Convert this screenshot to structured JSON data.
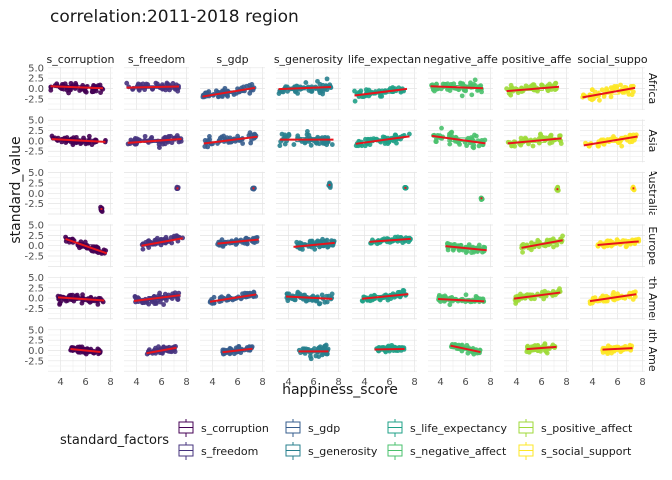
{
  "chart_data": {
    "type": "scatter",
    "title": "correlation:2011-2018 region",
    "xlabel": "happiness_score",
    "ylabel": "standard_value",
    "xlim": [
      3,
      8.2
    ],
    "ylim": [
      -5.2,
      5.2
    ],
    "xticks": [
      4,
      6,
      8
    ],
    "yticks": [
      5.0,
      2.5,
      0.0,
      -2.5
    ],
    "ytick_labels": [
      "5.0",
      "2.5",
      "0.0",
      "-2.5"
    ],
    "columns": [
      "s_corruption",
      "s_freedom",
      "s_gdp",
      "s_generosity",
      "s_life_expectancy",
      "s_negative_affect",
      "s_positive_affect",
      "s_social_support"
    ],
    "column_strip_labels": [
      "s_corruption",
      "s_freedom",
      "s_gdp",
      "s_generosity",
      "life_expectan",
      "negative_affe",
      "positive_affe",
      "social_suppo"
    ],
    "rows": [
      "Africa",
      "Asia",
      "Australia",
      "Europe",
      "North America",
      "South America"
    ],
    "row_strip_labels": [
      "Africa",
      "Asia",
      "Australia",
      "Europe",
      "rth Amer",
      "uth Amer"
    ],
    "grid": true,
    "legend": {
      "title": "standard_factors",
      "position": "bottom",
      "items": [
        "s_corruption",
        "s_freedom",
        "s_gdp",
        "s_generosity",
        "s_life_expectancy",
        "s_negative_affect",
        "s_positive_affect",
        "s_social_support"
      ]
    },
    "series_colors": {
      "s_corruption": "#440154",
      "s_freedom": "#46337e",
      "s_gdp": "#365c8d",
      "s_generosity": "#277f8e",
      "s_life_expectancy": "#1fa187",
      "s_negative_affect": "#4ac16d",
      "s_positive_affect": "#9fda3a",
      "s_social_support": "#fde725"
    },
    "trend_color": "#e8141c",
    "panels": [
      {
        "region": "Africa",
        "x_range": [
          3.2,
          7.4
        ],
        "y_mean": [
          0.3,
          0.35,
          -0.9,
          0.1,
          -0.9,
          0.3,
          -0.1,
          -1.0
        ],
        "slope": [
          -0.12,
          0.06,
          0.5,
          0.12,
          0.38,
          -0.12,
          0.25,
          0.55
        ],
        "spread": [
          0.6,
          0.5,
          0.5,
          0.7,
          0.4,
          0.7,
          0.6,
          0.6
        ]
      },
      {
        "region": "Asia",
        "x_range": [
          3.3,
          7.6
        ],
        "y_mean": [
          0.1,
          0.0,
          0.2,
          0.3,
          0.2,
          0.3,
          0.0,
          0.0
        ],
        "slope": [
          -0.15,
          0.22,
          0.38,
          0.0,
          0.42,
          -0.42,
          0.28,
          0.5
        ],
        "spread": [
          0.6,
          0.6,
          0.5,
          0.8,
          0.5,
          0.7,
          0.6,
          0.6
        ]
      },
      {
        "region": "Australia",
        "x_range": [
          7.2,
          7.35
        ],
        "y_mean": [
          -3.8,
          1.2,
          1.2,
          2.0,
          1.3,
          -1.2,
          1.0,
          1.2
        ],
        "slope": [
          0,
          0,
          0,
          0,
          0,
          0,
          0,
          0
        ],
        "spread": [
          0.3,
          0.15,
          0.12,
          0.3,
          0.12,
          0.2,
          0.2,
          0.15
        ]
      },
      {
        "region": "Europe",
        "x_range": [
          4.4,
          7.7
        ],
        "y_mean": [
          -0.1,
          0.9,
          1.0,
          0.2,
          1.3,
          -0.6,
          0.4,
          0.6
        ],
        "slope": [
          -1.05,
          0.55,
          0.3,
          0.3,
          0.22,
          -0.3,
          0.55,
          0.26
        ],
        "spread": [
          0.5,
          0.5,
          0.4,
          0.6,
          0.3,
          0.5,
          0.5,
          0.4
        ]
      },
      {
        "region": "North America",
        "x_range": [
          3.8,
          7.5
        ],
        "y_mean": [
          -0.2,
          0.0,
          0.0,
          0.1,
          0.4,
          -0.5,
          0.6,
          0.1
        ],
        "slope": [
          -0.2,
          0.38,
          0.48,
          -0.15,
          0.3,
          -0.15,
          0.4,
          0.45
        ],
        "spread": [
          0.5,
          0.6,
          0.4,
          0.6,
          0.4,
          0.5,
          0.5,
          0.5
        ]
      },
      {
        "region": "South America",
        "x_range": [
          4.8,
          7.2
        ],
        "y_mean": [
          0.0,
          0.0,
          0.0,
          -0.2,
          0.3,
          0.4,
          0.6,
          0.4
        ],
        "slope": [
          -0.3,
          0.55,
          0.35,
          0.0,
          0.04,
          -0.65,
          0.22,
          0.15
        ],
        "spread": [
          0.4,
          0.5,
          0.4,
          0.6,
          0.3,
          0.5,
          0.4,
          0.4
        ]
      }
    ]
  }
}
